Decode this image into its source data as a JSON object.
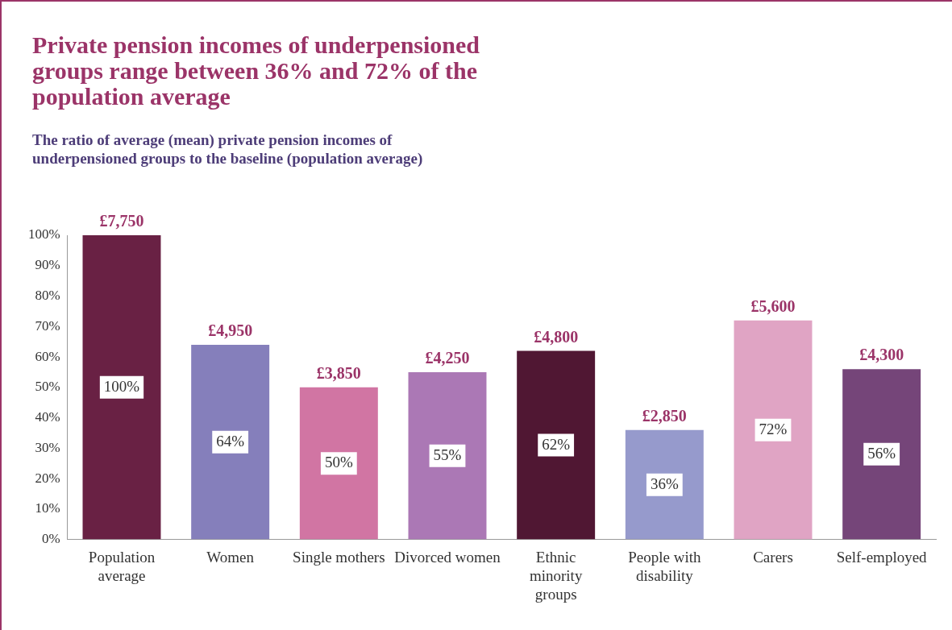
{
  "chart_data": {
    "type": "bar",
    "title": "Private pension incomes of underpensioned groups range between 36% and 72% of the population average",
    "subtitle": "The ratio of average (mean) private pension incomes of underpensioned groups to the baseline (population average)",
    "categories": [
      "Population average",
      "Women",
      "Single mothers",
      "Divorced women",
      "Ethnic minority groups",
      "People with disability",
      "Carers",
      "Self-employed"
    ],
    "values": [
      100,
      64,
      50,
      55,
      62,
      36,
      72,
      56
    ],
    "colors": [
      "#692144",
      "#857fbb",
      "#d175a3",
      "#ab78b5",
      "#501733",
      "#969acc",
      "#e0a4c4",
      "#754579"
    ],
    "value_labels": [
      "100%",
      "64%",
      "50%",
      "55%",
      "62%",
      "36%",
      "72%",
      "56%"
    ],
    "annotations": [
      {
        "text": "£7,750",
        "x": "Population average",
        "y": 100
      },
      {
        "text": "£4,950",
        "x": "Women",
        "y": 64
      },
      {
        "text": "£3,850",
        "x": "Single mothers",
        "y": 50
      },
      {
        "text": "£4,250",
        "x": "Divorced women",
        "y": 55
      },
      {
        "text": "£4,800",
        "x": "Ethnic minority groups",
        "y": 62
      },
      {
        "text": "£2,850",
        "x": "People with disability",
        "y": 36
      },
      {
        "text": "£5,600",
        "x": "Carers",
        "y": 72
      },
      {
        "text": "£4,300",
        "x": "Self-employed",
        "y": 56
      }
    ],
    "ylim": [
      0,
      100
    ],
    "yticks": [
      {
        "value": 0,
        "label": "0%"
      },
      {
        "value": 10,
        "label": "10%"
      },
      {
        "value": 20,
        "label": "20%"
      },
      {
        "value": 30,
        "label": "30%"
      },
      {
        "value": 40,
        "label": "40%"
      },
      {
        "value": 50,
        "label": "50%"
      },
      {
        "value": 60,
        "label": "60%"
      },
      {
        "value": 70,
        "label": "70%"
      },
      {
        "value": 80,
        "label": "80%"
      },
      {
        "value": 90,
        "label": "90%"
      },
      {
        "value": 100,
        "label": "100%"
      }
    ],
    "grid": false,
    "legend": false
  }
}
